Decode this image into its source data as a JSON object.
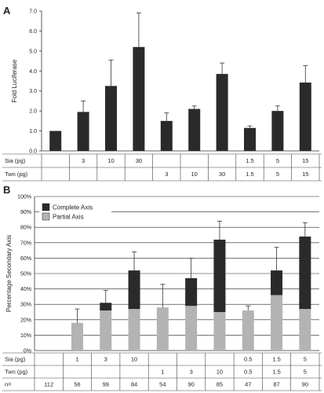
{
  "chart_data": [
    {
      "panel": "A",
      "type": "bar",
      "ylabel": "Fold Luciferase",
      "ylim": [
        0,
        7
      ],
      "yticks": [
        "0.0",
        "1.0",
        "2.0",
        "3.0",
        "4.0",
        "5.0",
        "6.0",
        "7.0"
      ],
      "grid": false,
      "series": [
        {
          "values": [
            1.0,
            1.95,
            3.25,
            5.2,
            1.5,
            2.1,
            3.85,
            1.15,
            2.0,
            3.42
          ],
          "errors": [
            0.0,
            0.55,
            1.3,
            1.7,
            0.4,
            0.15,
            0.55,
            0.1,
            0.25,
            0.85
          ]
        }
      ],
      "rows": [
        {
          "label": "Sia (pg)",
          "cells": [
            "",
            "3",
            "10",
            "30",
            "",
            "",
            "",
            "1.5",
            "5",
            "15"
          ]
        },
        {
          "label": "Twn (pg)",
          "cells": [
            "",
            "",
            "",
            "",
            "3",
            "10",
            "30",
            "1.5",
            "5",
            "15"
          ]
        }
      ],
      "colors": {
        "bar": "#2a2a2a"
      }
    },
    {
      "panel": "B",
      "type": "bar",
      "stacked": true,
      "ylabel": "Percentage Secondary Axis",
      "ylim": [
        0,
        100
      ],
      "yticks": [
        "0%",
        "10%",
        "20%",
        "30%",
        "40%",
        "50%",
        "60%",
        "70%",
        "80%",
        "90%",
        "100%"
      ],
      "grid": true,
      "legend_position": "top-left",
      "series": [
        {
          "name": "Partial Axis",
          "values": [
            0,
            18,
            26,
            27,
            28,
            29,
            25,
            26,
            36,
            27
          ],
          "color": "#b3b3b3"
        },
        {
          "name": "Complete Axis",
          "values": [
            0,
            0,
            5,
            25,
            0,
            18,
            47,
            0,
            16,
            47
          ],
          "color": "#2a2a2a"
        }
      ],
      "totals": [
        0,
        18,
        31,
        52,
        28,
        47,
        72,
        26,
        52,
        74
      ],
      "errors": [
        0,
        9,
        8,
        12,
        15,
        13,
        12,
        3,
        15,
        9
      ],
      "rows": [
        {
          "label": "Sia (pg)",
          "cells": [
            "",
            "1",
            "3",
            "10",
            "",
            "",
            "",
            "0.5",
            "1.5",
            "5"
          ]
        },
        {
          "label": "Twn (pg)",
          "cells": [
            "",
            "",
            "",
            "",
            "1",
            "3",
            "10",
            "0.5",
            "1.5",
            "5"
          ]
        },
        {
          "label": "n=",
          "cells": [
            "112",
            "56",
            "99",
            "84",
            "54",
            "90",
            "85",
            "47",
            "87",
            "90"
          ]
        }
      ]
    }
  ]
}
